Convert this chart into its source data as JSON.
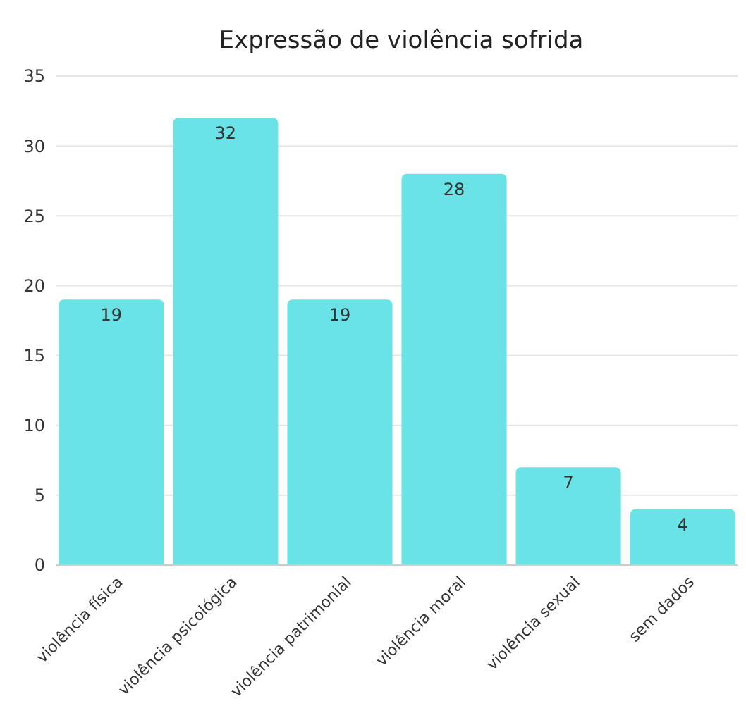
{
  "chart_data": {
    "type": "bar",
    "title": "Expressão de violência sofrida",
    "categories": [
      "violência física",
      "violência psicológica",
      "violência patrimonial",
      "violência moral",
      "violência sexual",
      "sem dados"
    ],
    "values": [
      19,
      32,
      19,
      28,
      7,
      4
    ],
    "color": "#6ae3e6",
    "ylim": [
      0,
      35
    ],
    "yticks": [
      0,
      5,
      10,
      15,
      20,
      25,
      30,
      35
    ],
    "grid": "y",
    "data_labels": true
  }
}
